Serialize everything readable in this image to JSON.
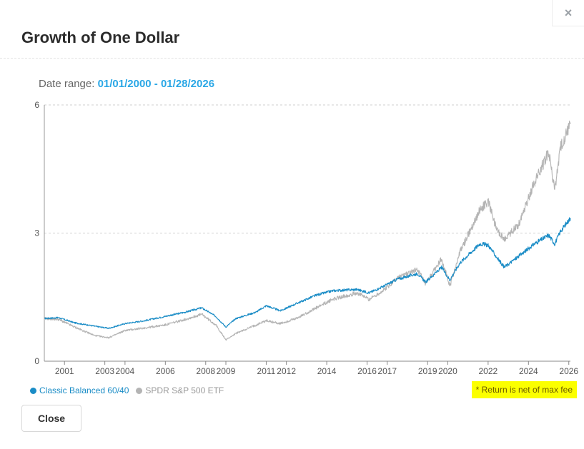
{
  "modal": {
    "title": "Growth of One Dollar",
    "close_icon": "×",
    "close_button_label": "Close"
  },
  "date_range": {
    "label": "Date range:",
    "value": "01/01/2000 - 01/28/2026"
  },
  "note": "* Return is net of max fee",
  "colors": {
    "accent": "#2aa7e6",
    "series_balanced": "#1a8cc6",
    "series_spdr": "#b4b4b4",
    "note_bg": "#fbff00"
  },
  "chart_data": {
    "type": "line",
    "title": "",
    "xlabel": "",
    "ylabel": "",
    "xlim": [
      2000.0,
      2026.08
    ],
    "ylim": [
      0,
      6
    ],
    "y_ticks": [
      0,
      3,
      6
    ],
    "x_ticks": [
      2001,
      2003,
      2004,
      2006,
      2008,
      2009,
      2011,
      2012,
      2014,
      2016,
      2017,
      2019,
      2020,
      2022,
      2024,
      2026
    ],
    "grid": "horizontal-dotted",
    "legend": "bottom-left",
    "series": [
      {
        "name": "Classic Balanced 60/40",
        "color": "#1a8cc6",
        "points": [
          [
            2000.0,
            1.0
          ],
          [
            2000.7,
            1.02
          ],
          [
            2001.5,
            0.9
          ],
          [
            2002.5,
            0.82
          ],
          [
            2003.2,
            0.77
          ],
          [
            2004.0,
            0.88
          ],
          [
            2005.0,
            0.95
          ],
          [
            2006.0,
            1.05
          ],
          [
            2007.0,
            1.15
          ],
          [
            2007.8,
            1.25
          ],
          [
            2008.5,
            1.05
          ],
          [
            2009.0,
            0.8
          ],
          [
            2009.5,
            1.0
          ],
          [
            2010.5,
            1.15
          ],
          [
            2011.0,
            1.3
          ],
          [
            2011.7,
            1.18
          ],
          [
            2012.5,
            1.35
          ],
          [
            2013.5,
            1.55
          ],
          [
            2014.3,
            1.65
          ],
          [
            2015.5,
            1.68
          ],
          [
            2016.1,
            1.6
          ],
          [
            2016.8,
            1.75
          ],
          [
            2017.5,
            1.92
          ],
          [
            2018.5,
            2.05
          ],
          [
            2018.9,
            1.85
          ],
          [
            2019.7,
            2.2
          ],
          [
            2020.1,
            1.9
          ],
          [
            2020.6,
            2.3
          ],
          [
            2021.6,
            2.75
          ],
          [
            2022.0,
            2.72
          ],
          [
            2022.4,
            2.45
          ],
          [
            2022.8,
            2.2
          ],
          [
            2023.5,
            2.45
          ],
          [
            2024.3,
            2.75
          ],
          [
            2025.0,
            2.95
          ],
          [
            2025.3,
            2.75
          ],
          [
            2025.6,
            3.05
          ],
          [
            2026.08,
            3.35
          ]
        ]
      },
      {
        "name": "SPDR S&P 500 ETF",
        "color": "#b4b4b4",
        "points": [
          [
            2000.0,
            1.0
          ],
          [
            2000.7,
            0.98
          ],
          [
            2001.5,
            0.8
          ],
          [
            2002.5,
            0.6
          ],
          [
            2003.2,
            0.55
          ],
          [
            2004.0,
            0.72
          ],
          [
            2005.0,
            0.78
          ],
          [
            2006.0,
            0.85
          ],
          [
            2007.0,
            0.98
          ],
          [
            2007.8,
            1.1
          ],
          [
            2008.5,
            0.85
          ],
          [
            2009.0,
            0.5
          ],
          [
            2009.5,
            0.65
          ],
          [
            2010.5,
            0.85
          ],
          [
            2011.0,
            0.95
          ],
          [
            2011.7,
            0.88
          ],
          [
            2012.5,
            1.0
          ],
          [
            2013.5,
            1.25
          ],
          [
            2014.3,
            1.45
          ],
          [
            2015.5,
            1.6
          ],
          [
            2016.1,
            1.45
          ],
          [
            2016.8,
            1.65
          ],
          [
            2017.5,
            1.95
          ],
          [
            2018.5,
            2.15
          ],
          [
            2018.9,
            1.8
          ],
          [
            2019.7,
            2.4
          ],
          [
            2020.1,
            1.75
          ],
          [
            2020.6,
            2.55
          ],
          [
            2021.6,
            3.55
          ],
          [
            2022.0,
            3.75
          ],
          [
            2022.4,
            3.1
          ],
          [
            2022.8,
            2.85
          ],
          [
            2023.5,
            3.2
          ],
          [
            2024.3,
            4.2
          ],
          [
            2025.0,
            4.9
          ],
          [
            2025.3,
            4.0
          ],
          [
            2025.6,
            5.0
          ],
          [
            2026.08,
            5.55
          ]
        ]
      }
    ]
  }
}
